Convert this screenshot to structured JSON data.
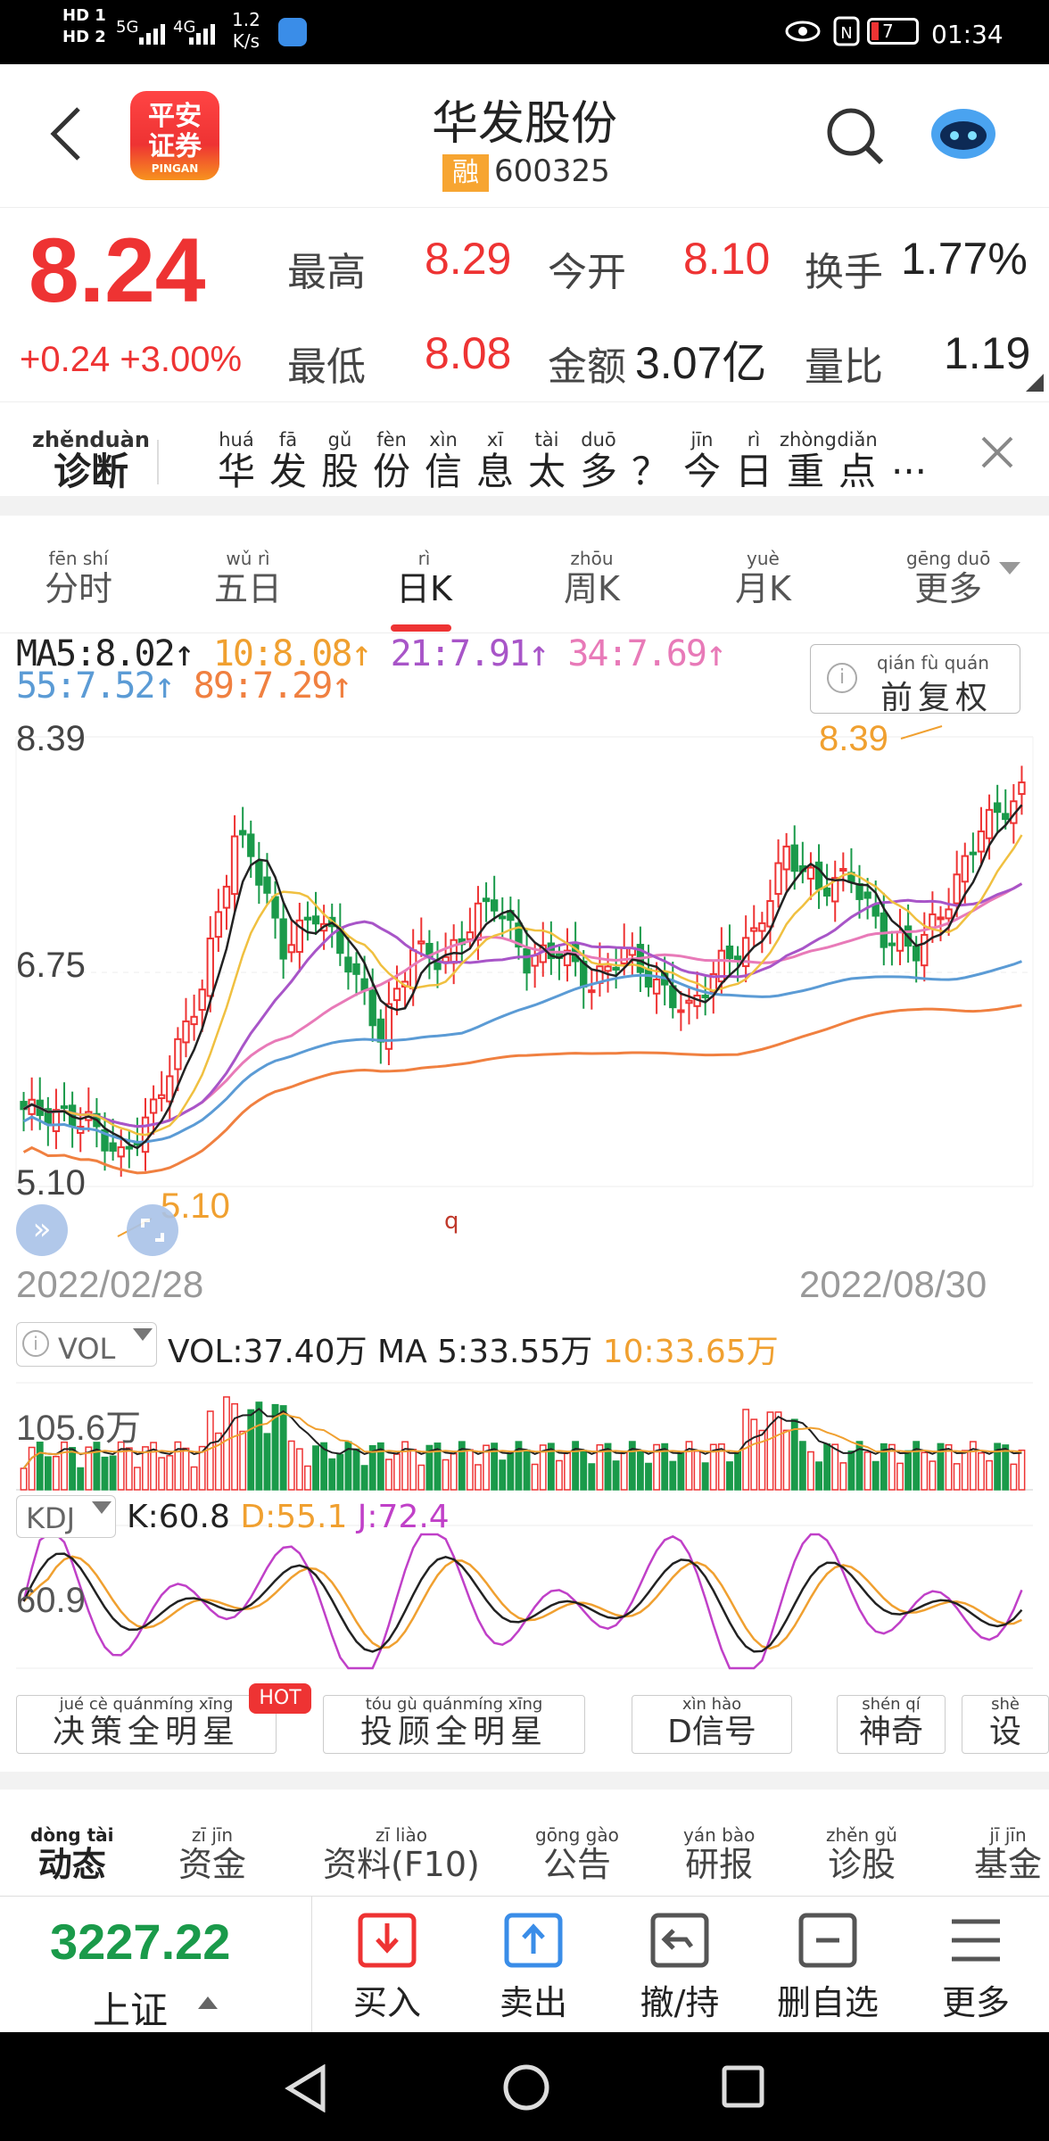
{
  "status": {
    "hd1": "HD 1",
    "hd2": "HD 2",
    "net": "5G",
    "net2": "4G",
    "speed": "1.2",
    "speed_unit": "K/s",
    "time": "01:34",
    "battery": "7"
  },
  "header": {
    "logo_text1": "平安",
    "logo_text2": "证券",
    "logo_sub": "PINGAN",
    "title": "华发股份",
    "badge": "融",
    "code": "600325"
  },
  "quote": {
    "price": "8.24",
    "change": "+0.24 +3.00%",
    "high_label": "最高",
    "high": "8.29",
    "open_label": "今开",
    "open": "8.10",
    "turnover_label": "换手",
    "turnover": "1.77%",
    "low_label": "最低",
    "low": "8.08",
    "amount_label": "金额",
    "amount": "3.07亿",
    "vratio_label": "量比",
    "vratio": "1.19"
  },
  "diagnosis": {
    "label_py": "zhěnduàn",
    "label": "诊断",
    "headline": [
      {
        "py": "huá",
        "hz": "华"
      },
      {
        "py": "fā",
        "hz": "发"
      },
      {
        "py": "gǔ",
        "hz": "股"
      },
      {
        "py": "fèn",
        "hz": "份"
      },
      {
        "py": "xìn",
        "hz": "信"
      },
      {
        "py": "xī",
        "hz": "息"
      },
      {
        "py": "tài",
        "hz": "太"
      },
      {
        "py": "duō",
        "hz": "多"
      },
      {
        "py": "",
        "hz": "？"
      },
      {
        "py": "jīn",
        "hz": "今"
      },
      {
        "py": "rì",
        "hz": "日"
      },
      {
        "py": "zhòng",
        "hz": "重"
      },
      {
        "py": "diǎn",
        "hz": "点"
      },
      {
        "py": "",
        "hz": "···"
      }
    ]
  },
  "ktabs": [
    {
      "py": "fēn shí",
      "hz": "分时"
    },
    {
      "py": "wǔ rì",
      "hz": "五日"
    },
    {
      "py": "rì",
      "hz": "日K"
    },
    {
      "py": "zhōu",
      "hz": "周K"
    },
    {
      "py": "yuè",
      "hz": "月K"
    },
    {
      "py": "gēng duō",
      "hz": "更多"
    }
  ],
  "kline": {
    "ma_line1": [
      {
        "text": "MA5:8.02↑",
        "color": "#222"
      },
      {
        "text": " 10:8.08↑",
        "color": "#f0a030"
      },
      {
        "text": " 21:7.91↑",
        "color": "#a855c8"
      },
      {
        "text": " 34:7.69↑",
        "color": "#e87ab8"
      }
    ],
    "ma_line2": [
      {
        "text": "55:7.52↑",
        "color": "#5b9bd5"
      },
      {
        "text": " 89:7.29↑",
        "color": "#f08040"
      }
    ],
    "adjust_py": "qián fù quán",
    "adjust": "前复权",
    "y_top": "8.39",
    "y_mid": "6.75",
    "y_bot": "5.10",
    "hi_mark": "8.39",
    "lo_mark": "5.10",
    "marker_q": "q",
    "date_start": "2022/02/28",
    "date_end": "2022/08/30"
  },
  "volume": {
    "label": "VOL",
    "line": "VOL:37.40万 MA 5:33.55万",
    "ma10": " 10:33.65万",
    "y_top": "105.6万"
  },
  "kdj": {
    "label": "KDJ",
    "k": "K:60.8",
    "d": " D:55.1",
    "j": " J:72.4",
    "y": "60.9"
  },
  "features": [
    {
      "py": "jué  cè  quánmíng xīng",
      "hz": "决策全明星",
      "hot": "HOT"
    },
    {
      "py": "tóu  gù  quánmíng xīng",
      "hz": "投顾全明星"
    },
    {
      "py": "xìn  hào",
      "hz": "D信号"
    },
    {
      "py": "shén  qí",
      "hz": "神奇"
    },
    {
      "py": "shè",
      "hz": "设"
    }
  ],
  "bottom_tabs": [
    {
      "py": "dòng tài",
      "hz": "动态"
    },
    {
      "py": "zī  jīn",
      "hz": "资金"
    },
    {
      "py": "zī  liào",
      "hz": "资料(F10)"
    },
    {
      "py": "gōng gào",
      "hz": "公告"
    },
    {
      "py": "yán bào",
      "hz": "研报"
    },
    {
      "py": "zhěn gǔ",
      "hz": "诊股"
    },
    {
      "py": "jī  jīn",
      "hz": "基金"
    }
  ],
  "index": {
    "value": "3227.22",
    "name": "上证"
  },
  "actions": [
    {
      "label": "买入",
      "icon": "buy-icon"
    },
    {
      "label": "卖出",
      "icon": "sell-icon"
    },
    {
      "label": "撤/持",
      "icon": "withdraw-icon"
    },
    {
      "label": "删自选",
      "icon": "remove-icon"
    },
    {
      "label": "更多",
      "icon": "more-icon"
    }
  ]
}
